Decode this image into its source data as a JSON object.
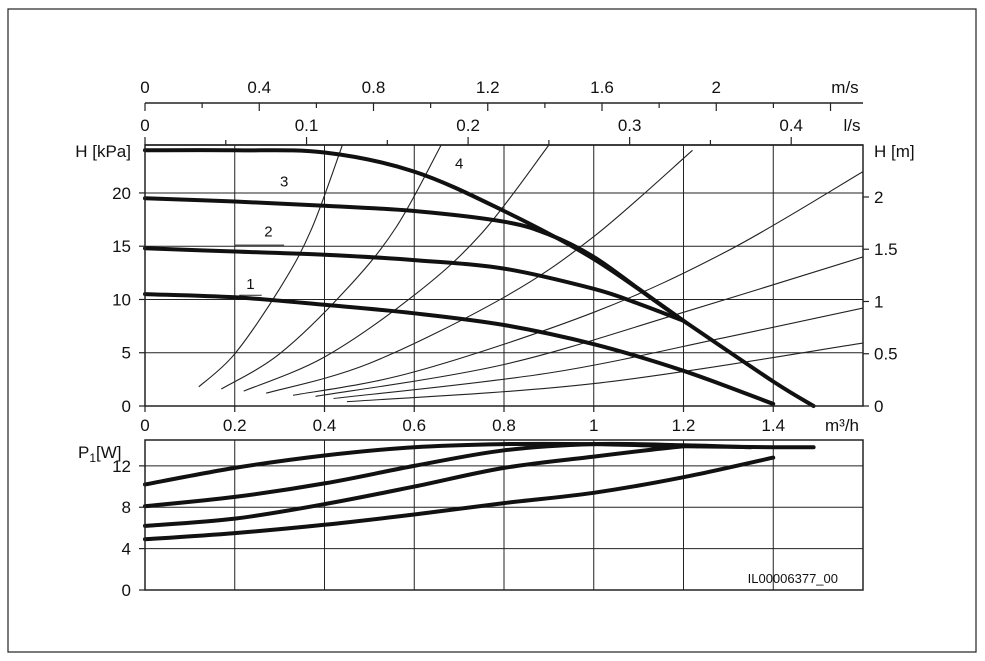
{
  "figure_id": "IL00006377_00",
  "chart_data": [
    {
      "type": "line",
      "name": "head-curve-chart",
      "xlabel": "m³/h",
      "ylabel_left": "H [kPa]",
      "ylabel_right": "H [m]",
      "top_axis_flow": {
        "label": "l/s",
        "ticks": [
          "0",
          "0.1",
          "0.2",
          "0.3",
          "0.4"
        ],
        "values": [
          0,
          0.1,
          0.2,
          0.3,
          0.4
        ]
      },
      "top_axis_speed": {
        "label": "m/s",
        "ticks": [
          "0",
          "0.4",
          "0.8",
          "1.2",
          "1.6",
          "2"
        ],
        "values": [
          0,
          0.4,
          0.8,
          1.2,
          1.6,
          2.0
        ]
      },
      "xlim": [
        0,
        1.6
      ],
      "ylim": [
        0,
        24.5
      ],
      "xticks": [
        "0",
        "0.2",
        "0.4",
        "0.6",
        "0.8",
        "1",
        "1.2",
        "1.4"
      ],
      "xtick_values": [
        0,
        0.2,
        0.4,
        0.6,
        0.8,
        1.0,
        1.2,
        1.4
      ],
      "yticks_left": [
        "0",
        "5",
        "10",
        "15",
        "20"
      ],
      "ytick_left_values": [
        0,
        5,
        10,
        15,
        20
      ],
      "yticks_right": [
        "0",
        "0.5",
        "1",
        "1.5",
        "2"
      ],
      "ytick_right_values": [
        0,
        0.5,
        1,
        1.5,
        2
      ],
      "grid": true,
      "series": [
        {
          "name": "1",
          "x": [
            0,
            0.2,
            0.4,
            0.6,
            0.8,
            1.0,
            1.2,
            1.4
          ],
          "y": [
            10.5,
            10.2,
            9.5,
            8.7,
            7.6,
            5.8,
            3.3,
            0.2
          ]
        },
        {
          "name": "2",
          "x": [
            0,
            0.2,
            0.4,
            0.6,
            0.8,
            1.0,
            1.1,
            1.2
          ],
          "y": [
            14.8,
            14.5,
            14.2,
            13.7,
            12.9,
            11.0,
            9.6,
            8.0
          ]
        },
        {
          "name": "3",
          "x": [
            0,
            0.2,
            0.4,
            0.6,
            0.8,
            0.9,
            1.0,
            1.1,
            1.2
          ],
          "y": [
            19.5,
            19.2,
            18.8,
            18.3,
            17.3,
            16.1,
            14.0,
            11.0,
            8.0
          ]
        },
        {
          "name": "4",
          "x": [
            0,
            0.2,
            0.4,
            0.6,
            0.8,
            1.0,
            1.2,
            1.4,
            1.49
          ],
          "y": [
            24.0,
            24.0,
            23.8,
            22.0,
            18.3,
            13.8,
            8.0,
            2.3,
            0.0
          ]
        }
      ],
      "system_curves": [
        {
          "x": [
            0.12,
            0.2,
            0.3,
            0.37,
            0.44
          ],
          "y": [
            1.8,
            4.9,
            11.0,
            16.5,
            24.5
          ]
        },
        {
          "x": [
            0.17,
            0.3,
            0.45,
            0.56,
            0.66
          ],
          "y": [
            1.6,
            4.9,
            11.0,
            16.8,
            24.5
          ]
        },
        {
          "x": [
            0.22,
            0.4,
            0.6,
            0.75,
            0.9
          ],
          "y": [
            1.4,
            4.6,
            10.4,
            16.2,
            24.5
          ]
        },
        {
          "x": [
            0.27,
            0.5,
            0.8,
            1.0,
            1.22
          ],
          "y": [
            1.2,
            4.0,
            10.2,
            15.9,
            24.0
          ]
        },
        {
          "x": [
            0.33,
            0.6,
            1.0,
            1.3,
            1.6
          ],
          "y": [
            1.0,
            3.2,
            8.8,
            14.6,
            22.0
          ]
        },
        {
          "x": [
            0.38,
            0.8,
            1.2,
            1.6
          ],
          "y": [
            0.9,
            3.9,
            8.8,
            14.0
          ]
        },
        {
          "x": [
            0.42,
            0.9,
            1.3,
            1.6
          ],
          "y": [
            0.7,
            3.1,
            6.5,
            9.2
          ]
        },
        {
          "x": [
            0.45,
            1.0,
            1.6
          ],
          "y": [
            0.4,
            2.1,
            5.9
          ]
        }
      ]
    },
    {
      "type": "line",
      "name": "power-chart",
      "ylabel": "P1[W]",
      "ylabel_main": "P",
      "ylabel_sub": "1",
      "ylabel_unit": "[W]",
      "xlim": [
        0,
        1.6
      ],
      "ylim": [
        0,
        14.5
      ],
      "yticks": [
        "0",
        "4",
        "8",
        "12"
      ],
      "ytick_values": [
        0,
        4,
        8,
        12
      ],
      "grid": true,
      "series": [
        {
          "name": "4",
          "x": [
            0,
            0.2,
            0.4,
            0.6,
            0.8,
            1.0,
            1.2,
            1.4,
            1.49
          ],
          "y": [
            10.2,
            11.8,
            13.0,
            13.8,
            14.1,
            14.1,
            13.9,
            13.8,
            13.8
          ]
        },
        {
          "name": "3",
          "x": [
            0,
            0.2,
            0.4,
            0.6,
            0.8,
            1.0,
            1.2,
            1.35
          ],
          "y": [
            8.1,
            9.0,
            10.3,
            12.0,
            13.5,
            14.1,
            14.0,
            13.8
          ]
        },
        {
          "name": "2",
          "x": [
            0,
            0.2,
            0.4,
            0.6,
            0.8,
            1.0,
            1.2,
            1.23
          ],
          "y": [
            6.2,
            6.9,
            8.3,
            10.0,
            11.8,
            12.9,
            13.9,
            13.9
          ]
        },
        {
          "name": "1",
          "x": [
            0,
            0.2,
            0.4,
            0.6,
            0.8,
            1.0,
            1.2,
            1.4
          ],
          "y": [
            4.9,
            5.5,
            6.3,
            7.3,
            8.4,
            9.4,
            10.9,
            12.8
          ]
        }
      ]
    }
  ]
}
